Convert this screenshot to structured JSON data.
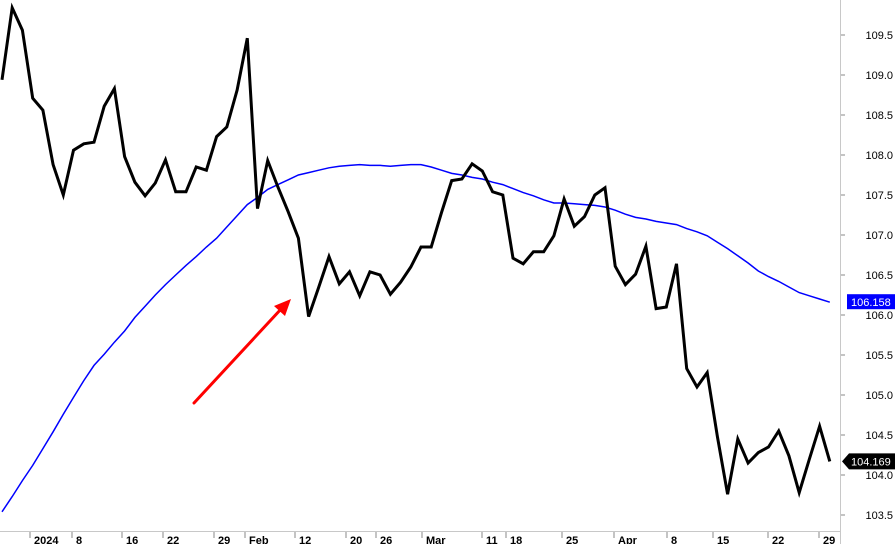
{
  "chart_data": {
    "type": "line",
    "title": "",
    "xlabel": "",
    "ylabel": "",
    "ylim": [
      103.4,
      109.95
    ],
    "y_axis_position": "right",
    "y_ticks": [
      103.5,
      104.0,
      104.5,
      105.0,
      105.5,
      106.0,
      106.5,
      107.0,
      107.5,
      108.0,
      108.5,
      109.0,
      109.5
    ],
    "y_tick_labels": [
      "103.5",
      "104.0",
      "104.5",
      "105.0",
      "105.5",
      "106.0",
      "106.5",
      "107.0",
      "107.5",
      "108.0",
      "108.5",
      "109.0",
      "109.5"
    ],
    "x_tick_labels": [
      "2024",
      "8",
      "16",
      "22",
      "29",
      "Feb",
      "12",
      "20",
      "26",
      "Mar",
      "11",
      "18",
      "25",
      "Apr",
      "8",
      "15",
      "22",
      "29"
    ],
    "grid": false,
    "series": [
      {
        "color": "#000000",
        "values": [
          108.94,
          109.84,
          109.56,
          108.71,
          108.56,
          107.88,
          107.5,
          108.06,
          108.14,
          108.16,
          108.61,
          108.83,
          107.98,
          107.66,
          107.49,
          107.65,
          107.94,
          107.54,
          107.54,
          107.85,
          107.81,
          108.23,
          108.35,
          108.81,
          109.46,
          107.33,
          107.93,
          107.6,
          107.29,
          106.96,
          105.98,
          106.35,
          106.73,
          106.39,
          106.54,
          106.24,
          106.54,
          106.5,
          106.26,
          106.41,
          106.6,
          106.85,
          106.85,
          107.28,
          107.68,
          107.7,
          107.89,
          107.8,
          107.54,
          107.5,
          106.71,
          106.64,
          106.79,
          106.79,
          106.99,
          107.45,
          107.11,
          107.23,
          107.5,
          107.59,
          106.61,
          106.38,
          106.51,
          106.86,
          106.08,
          106.1,
          106.64,
          105.33,
          105.1,
          105.28,
          104.48,
          103.76,
          104.45,
          104.15,
          104.28,
          104.35,
          104.55,
          104.24,
          103.78,
          104.2,
          104.61,
          104.17
        ],
        "last_label": "104.169"
      },
      {
        "color": "#0000ff",
        "values": [
          103.54,
          103.73,
          103.93,
          104.12,
          104.33,
          104.54,
          104.76,
          104.97,
          105.18,
          105.37,
          105.51,
          105.66,
          105.8,
          105.97,
          106.11,
          106.25,
          106.38,
          106.5,
          106.62,
          106.73,
          106.85,
          106.96,
          107.1,
          107.24,
          107.38,
          107.47,
          107.57,
          107.63,
          107.69,
          107.75,
          107.78,
          107.81,
          107.84,
          107.86,
          107.87,
          107.88,
          107.87,
          107.87,
          107.86,
          107.87,
          107.88,
          107.88,
          107.85,
          107.81,
          107.77,
          107.75,
          107.72,
          107.7,
          107.66,
          107.63,
          107.58,
          107.53,
          107.49,
          107.44,
          107.4,
          107.4,
          107.39,
          107.38,
          107.37,
          107.35,
          107.31,
          107.26,
          107.22,
          107.2,
          107.17,
          107.15,
          107.13,
          107.08,
          107.04,
          106.99,
          106.91,
          106.83,
          106.74,
          106.65,
          106.55,
          106.48,
          106.42,
          106.35,
          106.28,
          106.24,
          106.2,
          106.16
        ],
        "last_label": "106.158"
      }
    ],
    "annotations": [
      {
        "type": "arrow",
        "color": "#ff0000"
      }
    ]
  }
}
